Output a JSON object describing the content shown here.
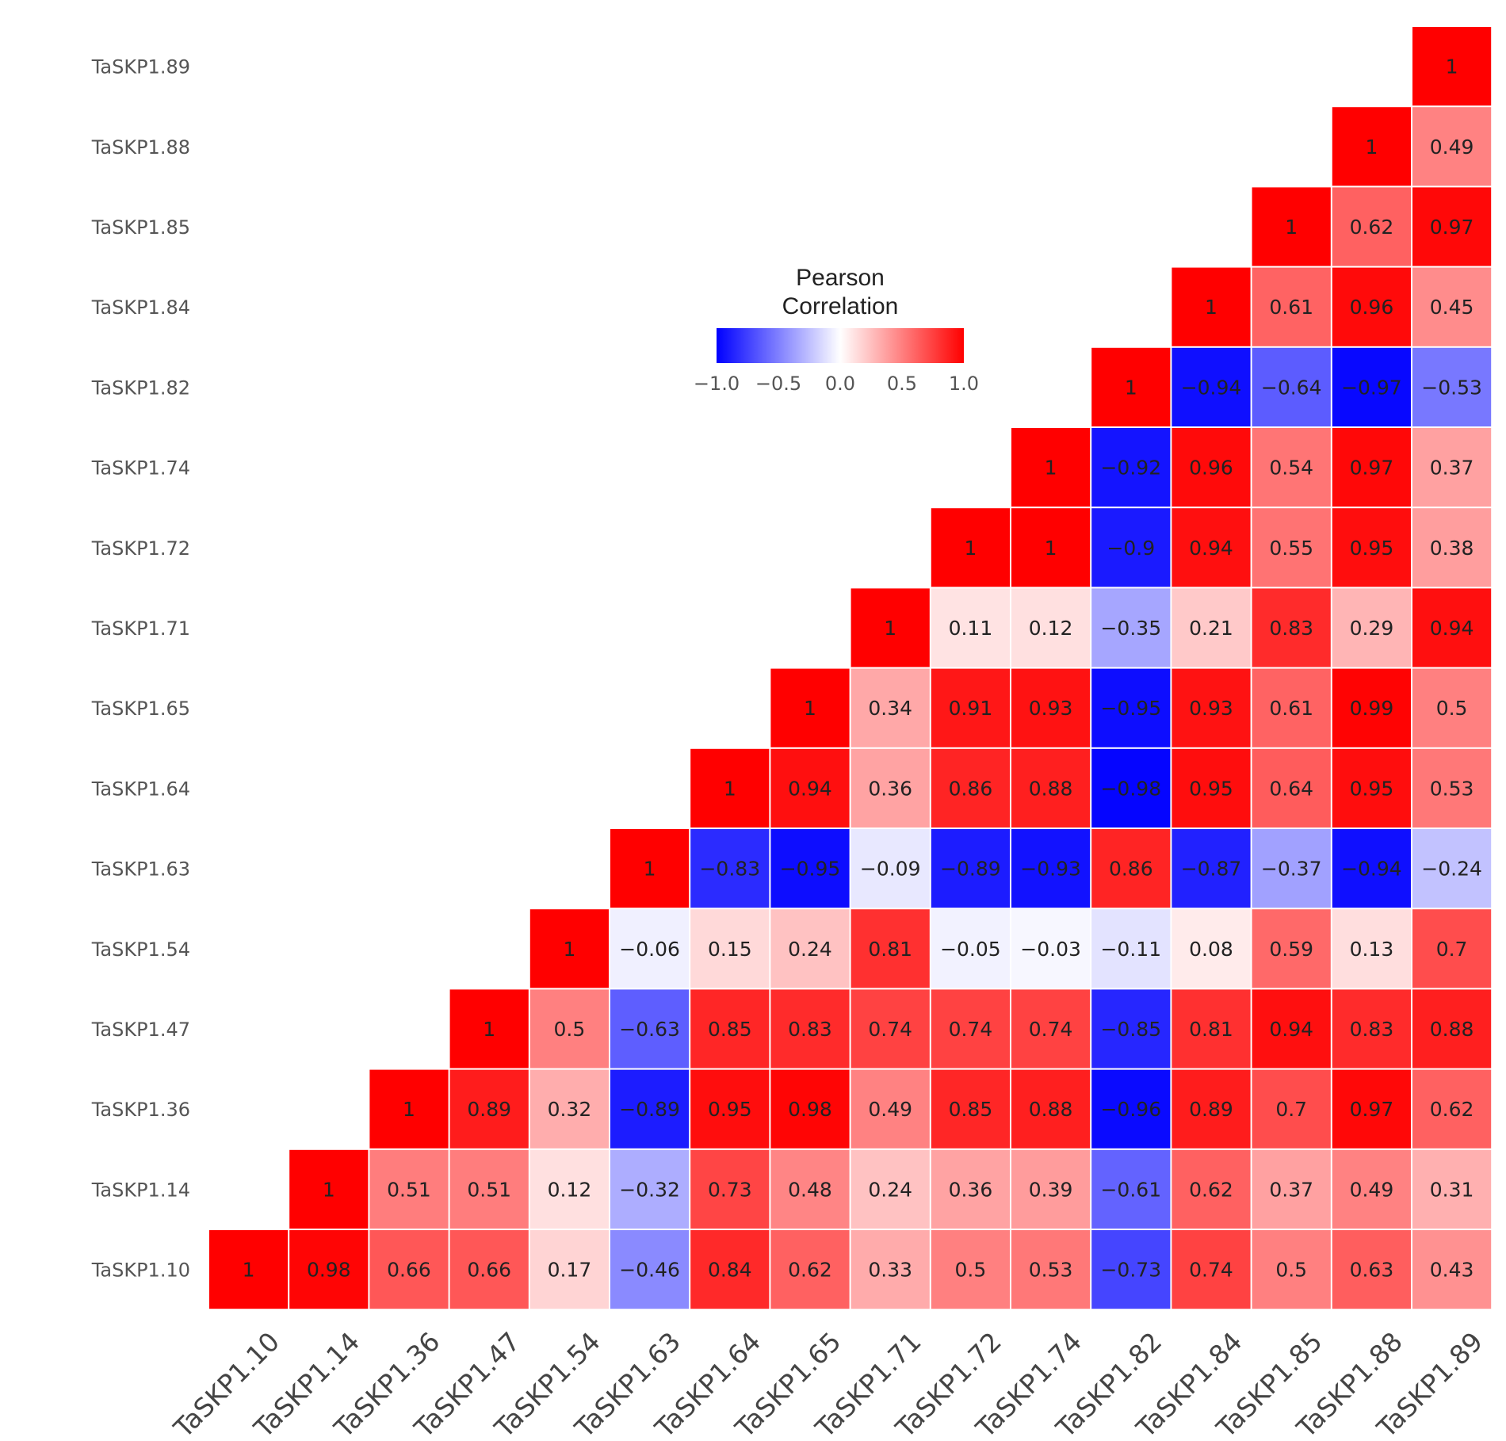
{
  "chart_data": {
    "type": "heatmap",
    "title": "",
    "rows": [
      "TaSKP1.89",
      "TaSKP1.88",
      "TaSKP1.85",
      "TaSKP1.84",
      "TaSKP1.82",
      "TaSKP1.74",
      "TaSKP1.72",
      "TaSKP1.71",
      "TaSKP1.65",
      "TaSKP1.64",
      "TaSKP1.63",
      "TaSKP1.54",
      "TaSKP1.47",
      "TaSKP1.36",
      "TaSKP1.14",
      "TaSKP1.10"
    ],
    "columns": [
      "TaSKP1.10",
      "TaSKP1.14",
      "TaSKP1.36",
      "TaSKP1.47",
      "TaSKP1.54",
      "TaSKP1.63",
      "TaSKP1.64",
      "TaSKP1.65",
      "TaSKP1.71",
      "TaSKP1.72",
      "TaSKP1.74",
      "TaSKP1.82",
      "TaSKP1.84",
      "TaSKP1.85",
      "TaSKP1.88",
      "TaSKP1.89"
    ],
    "value_labels": [
      [
        null,
        null,
        null,
        null,
        null,
        null,
        null,
        null,
        null,
        null,
        null,
        null,
        null,
        null,
        null,
        "1"
      ],
      [
        null,
        null,
        null,
        null,
        null,
        null,
        null,
        null,
        null,
        null,
        null,
        null,
        null,
        null,
        "1",
        "0.49"
      ],
      [
        null,
        null,
        null,
        null,
        null,
        null,
        null,
        null,
        null,
        null,
        null,
        null,
        null,
        "1",
        "0.62",
        "0.97"
      ],
      [
        null,
        null,
        null,
        null,
        null,
        null,
        null,
        null,
        null,
        null,
        null,
        null,
        "1",
        "0.61",
        "0.96",
        "0.45"
      ],
      [
        null,
        null,
        null,
        null,
        null,
        null,
        null,
        null,
        null,
        null,
        null,
        "1",
        "−0.94",
        "−0.64",
        "−0.97",
        "−0.53"
      ],
      [
        null,
        null,
        null,
        null,
        null,
        null,
        null,
        null,
        null,
        null,
        "1",
        "−0.92",
        "0.96",
        "0.54",
        "0.97",
        "0.37"
      ],
      [
        null,
        null,
        null,
        null,
        null,
        null,
        null,
        null,
        null,
        "1",
        "1",
        "−0.9",
        "0.94",
        "0.55",
        "0.95",
        "0.38"
      ],
      [
        null,
        null,
        null,
        null,
        null,
        null,
        null,
        null,
        "1",
        "0.11",
        "0.12",
        "−0.35",
        "0.21",
        "0.83",
        "0.29",
        "0.94"
      ],
      [
        null,
        null,
        null,
        null,
        null,
        null,
        null,
        "1",
        "0.34",
        "0.91",
        "0.93",
        "−0.95",
        "0.93",
        "0.61",
        "0.99",
        "0.5"
      ],
      [
        null,
        null,
        null,
        null,
        null,
        null,
        "1",
        "0.94",
        "0.36",
        "0.86",
        "0.88",
        "−0.98",
        "0.95",
        "0.64",
        "0.95",
        "0.53"
      ],
      [
        null,
        null,
        null,
        null,
        null,
        "1",
        "−0.83",
        "−0.95",
        "−0.09",
        "−0.89",
        "−0.93",
        "0.86",
        "−0.87",
        "−0.37",
        "−0.94",
        "−0.24"
      ],
      [
        null,
        null,
        null,
        null,
        "1",
        "−0.06",
        "0.15",
        "0.24",
        "0.81",
        "−0.05",
        "−0.03",
        "−0.11",
        "0.08",
        "0.59",
        "0.13",
        "0.7"
      ],
      [
        null,
        null,
        null,
        "1",
        "0.5",
        "−0.63",
        "0.85",
        "0.83",
        "0.74",
        "0.74",
        "0.74",
        "−0.85",
        "0.81",
        "0.94",
        "0.83",
        "0.88"
      ],
      [
        null,
        null,
        "1",
        "0.89",
        "0.32",
        "−0.89",
        "0.95",
        "0.98",
        "0.49",
        "0.85",
        "0.88",
        "−0.96",
        "0.89",
        "0.7",
        "0.97",
        "0.62"
      ],
      [
        null,
        "1",
        "0.51",
        "0.51",
        "0.12",
        "−0.32",
        "0.73",
        "0.48",
        "0.24",
        "0.36",
        "0.39",
        "−0.61",
        "0.62",
        "0.37",
        "0.49",
        "0.31"
      ],
      [
        "1",
        "0.98",
        "0.66",
        "0.66",
        "0.17",
        "−0.46",
        "0.84",
        "0.62",
        "0.33",
        "0.5",
        "0.53",
        "−0.73",
        "0.74",
        "0.5",
        "0.63",
        "0.43"
      ]
    ],
    "legend": {
      "title_line1": "Pearson",
      "title_line2": "Correlation",
      "ticks": [
        "−1.0",
        "−0.5",
        "0.0",
        "0.5",
        "1.0"
      ],
      "tick_values": [
        -1.0,
        -0.5,
        0.0,
        0.5,
        1.0
      ],
      "range": [
        -1.0,
        1.0
      ]
    },
    "colors": {
      "low": "#0000ff",
      "mid": "#ffffff",
      "high": "#ff0000"
    }
  }
}
